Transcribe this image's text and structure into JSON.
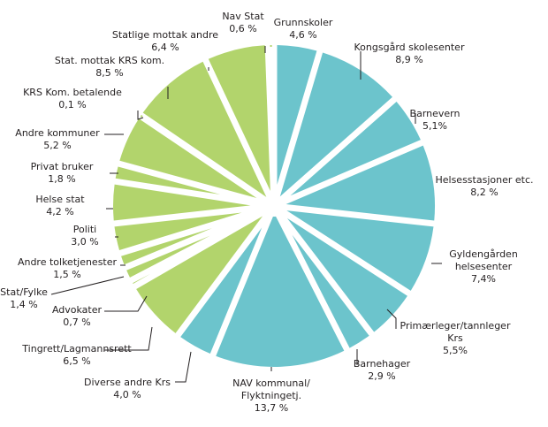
{
  "chart_data": {
    "type": "pie",
    "title": "",
    "colors": {
      "teal": "#6cc4cc",
      "green": "#b2d46c"
    },
    "slices": [
      {
        "name": "Grunnskoler",
        "value_label": "4,6 %",
        "value": 4.6,
        "color": "teal"
      },
      {
        "name": "Kongsgård skolesenter",
        "value_label": "8,9 %",
        "value": 8.9,
        "color": "teal"
      },
      {
        "name": "Barnevern",
        "value_label": "5,1%",
        "value": 5.1,
        "color": "teal"
      },
      {
        "name": "Helsesstasjoner etc.",
        "value_label": "8,2 %",
        "value": 8.2,
        "color": "teal"
      },
      {
        "name": "Gyldengården helsesenter",
        "value_label": "7,4%",
        "value": 7.4,
        "color": "teal"
      },
      {
        "name": "Primærleger/tannleger Krs",
        "value_label": "5,5%",
        "value": 5.5,
        "color": "teal"
      },
      {
        "name": "Barnehager",
        "value_label": "2,9 %",
        "value": 2.9,
        "color": "teal"
      },
      {
        "name": "NAV kommunal/ Flyktningetj.",
        "value_label": "13,7 %",
        "value": 13.7,
        "color": "teal"
      },
      {
        "name": "Diverse andre Krs",
        "value_label": "4,0 %",
        "value": 4.0,
        "color": "teal"
      },
      {
        "name": "Tingrett/Lagmannsrett",
        "value_label": "6,5 %",
        "value": 6.5,
        "color": "green"
      },
      {
        "name": "Advokater",
        "value_label": "0,7 %",
        "value": 0.7,
        "color": "green"
      },
      {
        "name": "Stat/Fylke",
        "value_label": "1,4 %",
        "value": 1.4,
        "color": "green"
      },
      {
        "name": "Andre tolketjenester",
        "value_label": "1,5 %",
        "value": 1.5,
        "color": "green"
      },
      {
        "name": "Politi",
        "value_label": "3,0 %",
        "value": 3.0,
        "color": "green"
      },
      {
        "name": "Helse stat",
        "value_label": "4,2 %",
        "value": 4.2,
        "color": "green"
      },
      {
        "name": "Privat bruker",
        "value_label": "1,8 %",
        "value": 1.8,
        "color": "green"
      },
      {
        "name": "Andre kommuner",
        "value_label": "5,2 %",
        "value": 5.2,
        "color": "green"
      },
      {
        "name": "KRS Kom. betalende",
        "value_label": "0,1 %",
        "value": 0.1,
        "color": "green"
      },
      {
        "name": "Stat. mottak KRS kom.",
        "value_label": "8,5 %",
        "value": 8.5,
        "color": "green"
      },
      {
        "name": "Statlige mottak andre",
        "value_label": "6,4 %",
        "value": 6.4,
        "color": "green"
      },
      {
        "name": "Nav Stat",
        "value_label": "0,6 %",
        "value": 0.6,
        "color": "green"
      }
    ]
  }
}
